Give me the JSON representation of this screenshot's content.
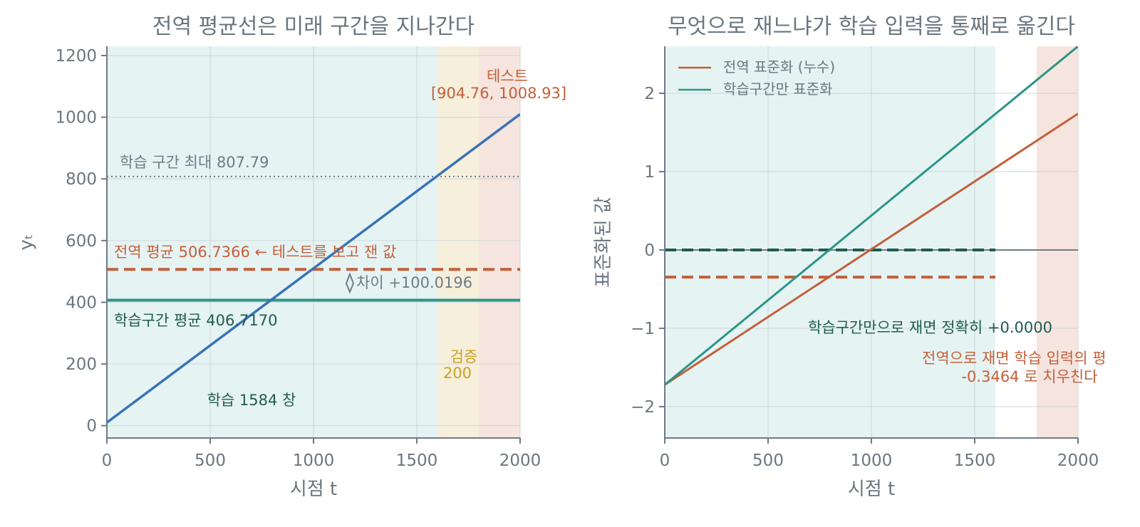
{
  "colors": {
    "series_line": "#3a73b5",
    "global": "#c2603a",
    "train": "#2a9688",
    "train_dark": "#1f5c4f",
    "val": "#caa024",
    "max_line": "#6f7b85",
    "text": "#6b7680",
    "train_bg": "#e6f3f3",
    "val_bg": "#f6efdb",
    "test_bg": "#f6e5de",
    "grid": "#c9d4d6",
    "axis": "#6f7b85"
  },
  "chart_data": [
    {
      "type": "line",
      "title": "전역 평균선은 미래 구간을 지나간다",
      "xlabel": "시점 t",
      "ylabel": "yₜ",
      "xlim": [
        0,
        2000
      ],
      "ylim": [
        -40,
        1230
      ],
      "xticks": [
        0,
        500,
        1000,
        1500,
        2000
      ],
      "yticks": [
        0,
        200,
        400,
        600,
        800,
        1000,
        1200
      ],
      "grid": true,
      "regions": [
        {
          "name": "train",
          "x": [
            0,
            1600
          ]
        },
        {
          "name": "val",
          "x": [
            1600,
            1800
          ]
        },
        {
          "name": "test",
          "x": [
            1800,
            2000
          ]
        }
      ],
      "series": [
        {
          "x": [
            0,
            2000
          ],
          "y": [
            10,
            1010
          ]
        }
      ],
      "hlines": {
        "train_max": 807.79,
        "global_mean": 506.7366,
        "train_mean": 406.717
      },
      "annotations": {
        "test_label": "테스트",
        "test_range": "[904.76, 1008.93]",
        "train_max_label": "학습 구간 최대 807.79",
        "global_mean_label": "전역 평균 506.7366 ← 테스트를 보고 잰 값",
        "gap_label": "차이 +100.0196",
        "train_mean_label": "학습구간 평균 406.7170",
        "val_label": "검증",
        "val_count": "200",
        "train_count_label": "학습 1584 창"
      }
    },
    {
      "type": "line",
      "title": "무엇으로 재느냐가 학습 입력을 통째로 옮긴다",
      "xlabel": "시점 t",
      "ylabel": "표준화된 값",
      "xlim": [
        0,
        2000
      ],
      "ylim": [
        -2.4,
        2.6
      ],
      "xticks": [
        0,
        500,
        1000,
        1500,
        2000
      ],
      "yticks": [
        -2,
        -1,
        0,
        1,
        2
      ],
      "grid": true,
      "regions": [
        {
          "name": "train",
          "x": [
            0,
            1600
          ]
        },
        {
          "name": "test",
          "x": [
            1800,
            2000
          ]
        }
      ],
      "series": [
        {
          "name": "전역 표준화 (누수)",
          "x": [
            0,
            2000
          ],
          "y": [
            -1.72,
            1.74
          ]
        },
        {
          "name": "학습구간만 표준화",
          "x": [
            0,
            2000
          ],
          "y": [
            -1.72,
            2.6
          ]
        }
      ],
      "hlines": {
        "zero": 0,
        "train_mean_global": -0.3464,
        "train_mean_train": 0.0
      },
      "hline_xmax": 1600,
      "annotations": {
        "train_only": "학습구간만으로 재면 정확히 +0.0000",
        "global_line1": "전역으로 재면 학습 입력의 평",
        "global_line2": "-0.3464 로 치우친다"
      }
    }
  ]
}
